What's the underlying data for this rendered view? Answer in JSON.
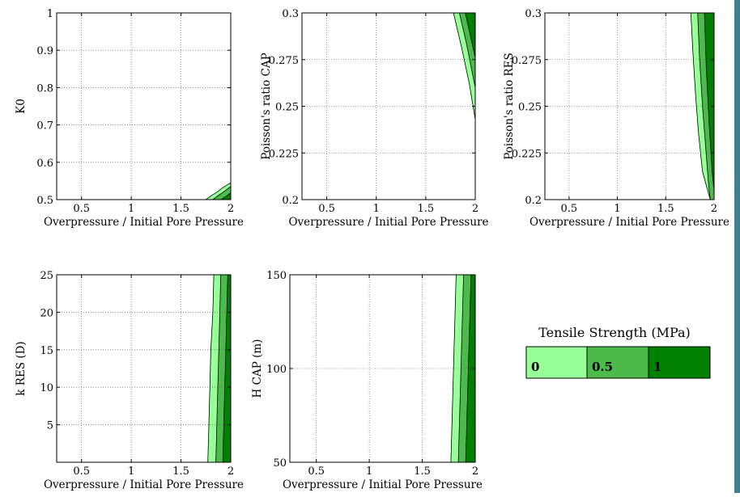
{
  "chart_data": [
    {
      "type": "filled-contour",
      "x": {
        "label": "Overpressure / Initial Pore Pressure",
        "range": [
          0.25,
          2
        ],
        "ticks": [
          "0.5",
          "1",
          "1.5",
          "2"
        ]
      },
      "y": {
        "label": "K0",
        "range": [
          0.5,
          1
        ],
        "ticks": [
          "0.5",
          "0.6",
          "0.7",
          "0.8",
          "0.9",
          "1"
        ]
      },
      "grid": true,
      "regions": [
        {
          "level": 0,
          "boundary": [
            [
              1.75,
              0.5
            ],
            [
              1.8,
              0.51
            ],
            [
              1.86,
              0.52
            ],
            [
              1.92,
              0.532
            ],
            [
              2.0,
              0.545
            ]
          ]
        },
        {
          "level": 0.5,
          "boundary": [
            [
              1.82,
              0.5
            ],
            [
              1.88,
              0.512
            ],
            [
              1.94,
              0.523
            ],
            [
              2.0,
              0.535
            ]
          ]
        },
        {
          "level": 1,
          "boundary": [
            [
              1.9,
              0.5
            ],
            [
              1.95,
              0.508
            ],
            [
              2.0,
              0.518
            ]
          ]
        }
      ]
    },
    {
      "type": "filled-contour",
      "x": {
        "label": "Overpressure / Initial Pore Pressure",
        "range": [
          0.25,
          2
        ],
        "ticks": [
          "0.5",
          "1",
          "1.5",
          "2"
        ]
      },
      "y": {
        "label": "Poisson's ratio CAP",
        "range": [
          0.2,
          0.3
        ],
        "ticks": [
          "0.2",
          "0.225",
          "0.25",
          "0.275",
          "0.3"
        ]
      },
      "grid": true,
      "regions": [
        {
          "level": 0,
          "boundary": [
            [
              1.78,
              0.3
            ],
            [
              1.86,
              0.282
            ],
            [
              1.94,
              0.262
            ],
            [
              2.0,
              0.243
            ]
          ]
        },
        {
          "level": 0.5,
          "boundary": [
            [
              1.84,
              0.3
            ],
            [
              1.91,
              0.284
            ],
            [
              1.97,
              0.268
            ],
            [
              2.0,
              0.26
            ]
          ]
        },
        {
          "level": 1,
          "boundary": [
            [
              1.9,
              0.3
            ],
            [
              1.95,
              0.288
            ],
            [
              2.0,
              0.276
            ]
          ]
        }
      ]
    },
    {
      "type": "filled-contour",
      "x": {
        "label": "Overpressure / Initial Pore Pressure",
        "range": [
          0.25,
          2
        ],
        "ticks": [
          "0.5",
          "1",
          "1.5",
          "2"
        ]
      },
      "y": {
        "label": "Poisson's ratio RES",
        "range": [
          0.2,
          0.3
        ],
        "ticks": [
          "0.2",
          "0.225",
          "0.25",
          "0.275",
          "0.3"
        ]
      },
      "grid": true,
      "regions": [
        {
          "level": 0,
          "boundary": [
            [
              1.76,
              0.3
            ],
            [
              1.78,
              0.28
            ],
            [
              1.81,
              0.255
            ],
            [
              1.84,
              0.235
            ],
            [
              1.88,
              0.215
            ],
            [
              1.96,
              0.2
            ]
          ]
        },
        {
          "level": 0.5,
          "boundary": [
            [
              1.83,
              0.3
            ],
            [
              1.85,
              0.275
            ],
            [
              1.88,
              0.25
            ],
            [
              1.91,
              0.23
            ],
            [
              1.94,
              0.21
            ],
            [
              1.96,
              0.2
            ]
          ]
        },
        {
          "level": 1,
          "boundary": [
            [
              1.9,
              0.3
            ],
            [
              1.92,
              0.27
            ],
            [
              1.95,
              0.24
            ],
            [
              1.98,
              0.215
            ],
            [
              2.0,
              0.205
            ]
          ]
        }
      ]
    },
    {
      "type": "filled-contour",
      "x": {
        "label": "Overpressure / Initial Pore Pressure",
        "range": [
          0.25,
          2
        ],
        "ticks": [
          "0.5",
          "1",
          "1.5",
          "2"
        ]
      },
      "y": {
        "label": "k RES (D)",
        "range": [
          0,
          25
        ],
        "ticks": [
          "5",
          "10",
          "15",
          "20",
          "25"
        ]
      },
      "grid": true,
      "regions": [
        {
          "level": 0,
          "boundary": [
            [
              1.77,
              0
            ],
            [
              1.78,
              5
            ],
            [
              1.79,
              10
            ],
            [
              1.8,
              15
            ],
            [
              1.82,
              20
            ],
            [
              1.83,
              25
            ]
          ]
        },
        {
          "level": 0.5,
          "boundary": [
            [
              1.85,
              0
            ],
            [
              1.86,
              5
            ],
            [
              1.87,
              10
            ],
            [
              1.88,
              15
            ],
            [
              1.89,
              20
            ],
            [
              1.9,
              25
            ]
          ]
        },
        {
          "level": 1,
          "boundary": [
            [
              1.92,
              0
            ],
            [
              1.93,
              5
            ],
            [
              1.94,
              10
            ],
            [
              1.95,
              15
            ],
            [
              1.96,
              20
            ],
            [
              1.97,
              25
            ]
          ]
        }
      ]
    },
    {
      "type": "filled-contour",
      "x": {
        "label": "Overpressure / Initial Pore Pressure",
        "range": [
          0.25,
          2
        ],
        "ticks": [
          "0.5",
          "1",
          "1.5",
          "2"
        ]
      },
      "y": {
        "label": "H CAP (m)",
        "range": [
          50,
          150
        ],
        "ticks": [
          "50",
          "100",
          "150"
        ]
      },
      "grid": true,
      "regions": [
        {
          "level": 0,
          "boundary": [
            [
              1.77,
              50
            ],
            [
              1.78,
              70
            ],
            [
              1.79,
              90
            ],
            [
              1.8,
              110
            ],
            [
              1.81,
              130
            ],
            [
              1.82,
              150
            ]
          ]
        },
        {
          "level": 0.5,
          "boundary": [
            [
              1.84,
              50
            ],
            [
              1.85,
              70
            ],
            [
              1.86,
              90
            ],
            [
              1.87,
              110
            ],
            [
              1.88,
              130
            ],
            [
              1.89,
              150
            ]
          ]
        },
        {
          "level": 1,
          "boundary": [
            [
              1.91,
              50
            ],
            [
              1.92,
              70
            ],
            [
              1.93,
              90
            ],
            [
              1.94,
              110
            ],
            [
              1.95,
              130
            ],
            [
              1.96,
              150
            ]
          ]
        }
      ]
    }
  ],
  "legend": {
    "title": "Tensile Strength (MPa)",
    "items": [
      {
        "label": "0",
        "color": "#99ff99"
      },
      {
        "label": "0.5",
        "color": "#4cbb4c"
      },
      {
        "label": "1",
        "color": "#008000"
      }
    ]
  }
}
